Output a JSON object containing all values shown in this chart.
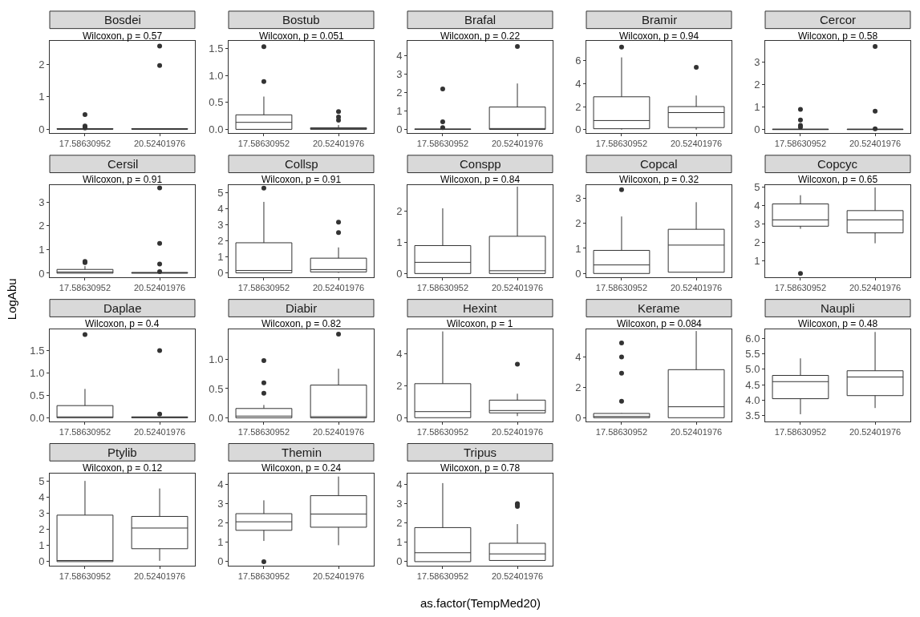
{
  "chart_data": [
    {
      "type": "box",
      "title": "Bosdei",
      "categories": [
        "17.58630952",
        "20.52401976"
      ],
      "annotations": [
        "Wilcoxon, p = 0.57"
      ],
      "ylim": [
        -0.12,
        2.72
      ],
      "yticks": [
        0,
        1,
        2
      ],
      "boxes": [
        {
          "low": 0,
          "q1": 0,
          "median": 0,
          "q3": 0.02,
          "high": 0.02,
          "outliers": [
            0.45,
            0.1,
            0.04
          ]
        },
        {
          "low": 0,
          "q1": 0,
          "median": 0,
          "q3": 0.02,
          "high": 0.02,
          "outliers": [
            1.97,
            2.57
          ]
        }
      ]
    },
    {
      "type": "box",
      "title": "Bostub",
      "categories": [
        "17.58630952",
        "20.52401976"
      ],
      "annotations": [
        "Wilcoxon, p = 0.051"
      ],
      "ylim": [
        -0.07,
        1.64
      ],
      "yticks": [
        {
          "value": 0,
          "label": "0.0"
        },
        {
          "value": 0.5,
          "label": "0.5"
        },
        {
          "value": 1,
          "label": "1.0"
        },
        {
          "value": 1.5,
          "label": "1.5"
        }
      ],
      "boxes": [
        {
          "low": 0,
          "q1": 0,
          "median": 0.13,
          "q3": 0.27,
          "high": 0.61,
          "outliers": [
            0.89,
            1.54
          ]
        },
        {
          "low": 0,
          "q1": 0,
          "median": 0.02,
          "q3": 0.03,
          "high": 0.08,
          "outliers": [
            0.17,
            0.23,
            0.33
          ]
        }
      ]
    },
    {
      "type": "box",
      "title": "Brafal",
      "categories": [
        "17.58630952",
        "20.52401976"
      ],
      "annotations": [
        "Wilcoxon, p = 0.22"
      ],
      "ylim": [
        -0.2,
        4.8
      ],
      "yticks": [
        0,
        1,
        2,
        3,
        4
      ],
      "boxes": [
        {
          "low": 0,
          "q1": 0,
          "median": 0,
          "q3": 0.03,
          "high": 0.03,
          "outliers": [
            2.2,
            0.42,
            0.1
          ]
        },
        {
          "low": 0,
          "q1": 0,
          "median": 0.05,
          "q3": 1.22,
          "high": 2.5,
          "outliers": [
            4.52
          ]
        }
      ]
    },
    {
      "type": "box",
      "title": "Bramir",
      "categories": [
        "17.58630952",
        "20.52401976"
      ],
      "annotations": [
        "Wilcoxon, p = 0.94"
      ],
      "ylim": [
        -0.3,
        7.67
      ],
      "yticks": [
        0,
        2,
        4,
        6
      ],
      "boxes": [
        {
          "low": 0,
          "q1": 0.08,
          "median": 0.79,
          "q3": 2.85,
          "high": 6.27,
          "outliers": [
            7.17
          ]
        },
        {
          "low": 0,
          "q1": 0.18,
          "median": 1.48,
          "q3": 2.0,
          "high": 2.96,
          "outliers": [
            5.4
          ]
        }
      ]
    },
    {
      "type": "box",
      "title": "Cercor",
      "categories": [
        "17.58630952",
        "20.52401976"
      ],
      "annotations": [
        "Wilcoxon, p = 0.58"
      ],
      "ylim": [
        -0.16,
        3.92
      ],
      "yticks": [
        0,
        1,
        2,
        3
      ],
      "boxes": [
        {
          "low": 0,
          "q1": 0,
          "median": 0,
          "q3": 0.02,
          "high": 0.02,
          "outliers": [
            0.89,
            0.42,
            0.18,
            0.1
          ]
        },
        {
          "low": 0,
          "q1": 0,
          "median": 0,
          "q3": 0.02,
          "high": 0.02,
          "outliers": [
            0.81,
            0.03,
            3.69
          ]
        }
      ]
    },
    {
      "type": "box",
      "title": "Cersil",
      "categories": [
        "17.58630952",
        "20.52401976"
      ],
      "annotations": [
        "Wilcoxon, p = 0.91"
      ],
      "ylim": [
        -0.17,
        3.71
      ],
      "yticks": [
        0,
        1,
        2,
        3
      ],
      "boxes": [
        {
          "low": 0,
          "q1": 0,
          "median": 0.05,
          "q3": 0.16,
          "high": 0.3,
          "outliers": [
            0.45,
            0.5
          ]
        },
        {
          "low": 0,
          "q1": 0,
          "median": 0.02,
          "q3": 0.03,
          "high": 0.03,
          "outliers": [
            1.26,
            0.39,
            0.07,
            3.6
          ]
        }
      ]
    },
    {
      "type": "box",
      "title": "Collsp",
      "categories": [
        "17.58630952",
        "20.52401976"
      ],
      "annotations": [
        "Wilcoxon, p = 0.91"
      ],
      "ylim": [
        -0.27,
        5.46
      ],
      "yticks": [
        0,
        1,
        2,
        3,
        4,
        5
      ],
      "boxes": [
        {
          "low": 0,
          "q1": 0,
          "median": 0.15,
          "q3": 1.88,
          "high": 4.43,
          "outliers": [
            5.29
          ]
        },
        {
          "low": 0,
          "q1": 0.06,
          "median": 0.21,
          "q3": 0.92,
          "high": 1.59,
          "outliers": [
            2.51,
            3.16
          ]
        }
      ]
    },
    {
      "type": "box",
      "title": "Conspp",
      "categories": [
        "17.58630952",
        "20.52401976"
      ],
      "annotations": [
        "Wilcoxon, p = 0.84"
      ],
      "ylim": [
        -0.12,
        2.84
      ],
      "yticks": [
        0,
        1,
        2
      ],
      "boxes": [
        {
          "low": 0,
          "q1": 0,
          "median": 0.36,
          "q3": 0.9,
          "high": 2.1
        },
        {
          "low": 0,
          "q1": 0,
          "median": 0.09,
          "q3": 1.2,
          "high": 2.8
        }
      ]
    },
    {
      "type": "box",
      "title": "Copcal",
      "categories": [
        "17.58630952",
        "20.52401976"
      ],
      "annotations": [
        "Wilcoxon, p = 0.32"
      ],
      "ylim": [
        -0.15,
        3.51
      ],
      "yticks": [
        0,
        1,
        2,
        3
      ],
      "boxes": [
        {
          "low": 0,
          "q1": 0,
          "median": 0.34,
          "q3": 0.92,
          "high": 2.27,
          "outliers": [
            3.34
          ]
        },
        {
          "low": 0.05,
          "q1": 0.05,
          "median": 1.13,
          "q3": 1.76,
          "high": 2.84
        }
      ]
    },
    {
      "type": "box",
      "title": "Copcyc",
      "categories": [
        "17.58630952",
        "20.52401976"
      ],
      "annotations": [
        "Wilcoxon, p = 0.65"
      ],
      "ylim": [
        0.13,
        5.08
      ],
      "yticks": [
        1,
        2,
        3,
        4,
        5
      ],
      "boxes": [
        {
          "low": 2.74,
          "q1": 2.88,
          "median": 3.22,
          "q3": 4.08,
          "high": 4.55,
          "outliers": [
            0.33
          ]
        },
        {
          "low": 1.96,
          "q1": 2.52,
          "median": 3.22,
          "q3": 3.72,
          "high": 4.97
        }
      ]
    },
    {
      "type": "box",
      "title": "Daplae",
      "categories": [
        "17.58630952",
        "20.52401976"
      ],
      "annotations": [
        "Wilcoxon, p = 0.4"
      ],
      "ylim": [
        -0.08,
        1.96
      ],
      "yticks": [
        {
          "value": 0,
          "label": "0.0"
        },
        {
          "value": 0.5,
          "label": "0.5"
        },
        {
          "value": 1,
          "label": "1.0"
        },
        {
          "value": 1.5,
          "label": "1.5"
        }
      ],
      "ylabel": "LogAbu",
      "boxes": [
        {
          "low": 0,
          "q1": 0,
          "median": 0.02,
          "q3": 0.27,
          "high": 0.64,
          "outliers": [
            1.85
          ]
        },
        {
          "low": 0,
          "q1": 0,
          "median": 0.01,
          "q3": 0.02,
          "high": 0.02,
          "outliers": [
            1.49,
            0.08
          ]
        }
      ]
    },
    {
      "type": "box",
      "title": "Diabir",
      "categories": [
        "17.58630952",
        "20.52401976"
      ],
      "annotations": [
        "Wilcoxon, p = 0.82"
      ],
      "ylim": [
        -0.06,
        1.51
      ],
      "yticks": [
        {
          "value": 0,
          "label": "0.0"
        },
        {
          "value": 0.5,
          "label": "0.5"
        },
        {
          "value": 1,
          "label": "1.0"
        }
      ],
      "boxes": [
        {
          "low": 0,
          "q1": 0,
          "median": 0.03,
          "q3": 0.16,
          "high": 0.22,
          "outliers": [
            0.42,
            0.6,
            0.98
          ]
        },
        {
          "low": 0,
          "q1": 0,
          "median": 0.02,
          "q3": 0.56,
          "high": 0.84,
          "outliers": [
            1.43
          ]
        }
      ]
    },
    {
      "type": "box",
      "title": "Hexint",
      "categories": [
        "17.58630952",
        "20.52401976"
      ],
      "annotations": [
        "Wilcoxon, p = 1"
      ],
      "ylim": [
        -0.23,
        5.52
      ],
      "yticks": [
        0,
        2,
        4
      ],
      "boxes": [
        {
          "low": 0,
          "q1": 0,
          "median": 0.38,
          "q3": 2.13,
          "high": 5.4
        },
        {
          "low": 0.1,
          "q1": 0.3,
          "median": 0.45,
          "q3": 1.1,
          "high": 1.5,
          "outliers": [
            3.35
          ]
        }
      ]
    },
    {
      "type": "box",
      "title": "Kerame",
      "categories": [
        "17.58630952",
        "20.52401976"
      ],
      "annotations": [
        "Wilcoxon, p = 0.084"
      ],
      "ylim": [
        -0.24,
        5.8
      ],
      "yticks": [
        0,
        2,
        4
      ],
      "boxes": [
        {
          "low": 0,
          "q1": 0,
          "median": 0.08,
          "q3": 0.28,
          "high": 0.3,
          "outliers": [
            1.08,
            2.92,
            4.0,
            4.92
          ]
        },
        {
          "low": 0,
          "q1": 0,
          "median": 0.72,
          "q3": 3.16,
          "high": 5.7
        }
      ]
    },
    {
      "type": "box",
      "title": "Naupli",
      "categories": [
        "17.58630952",
        "20.52401976"
      ],
      "annotations": [
        "Wilcoxon, p = 0.48"
      ],
      "ylim": [
        3.32,
        6.28
      ],
      "yticks": [
        {
          "value": 3.5,
          "label": "3.5"
        },
        {
          "value": 4,
          "label": "4.0"
        },
        {
          "value": 4.5,
          "label": "4.5"
        },
        {
          "value": 5,
          "label": "5.0"
        },
        {
          "value": 5.5,
          "label": "5.5"
        },
        {
          "value": 6,
          "label": "6.0"
        }
      ],
      "boxes": [
        {
          "low": 3.55,
          "q1": 4.05,
          "median": 4.6,
          "q3": 4.8,
          "high": 5.35
        },
        {
          "low": 3.75,
          "q1": 4.15,
          "median": 4.75,
          "q3": 4.95,
          "high": 6.2
        }
      ]
    },
    {
      "type": "box",
      "title": "Ptylib",
      "categories": [
        "17.58630952",
        "20.52401976"
      ],
      "annotations": [
        "Wilcoxon, p = 0.12"
      ],
      "ylim": [
        -0.24,
        5.45
      ],
      "yticks": [
        0,
        1,
        2,
        3,
        4,
        5
      ],
      "boxes": [
        {
          "low": 0,
          "q1": 0,
          "median": 0.07,
          "q3": 2.88,
          "high": 5.0
        },
        {
          "low": 0.05,
          "q1": 0.8,
          "median": 2.08,
          "q3": 2.8,
          "high": 4.53
        }
      ]
    },
    {
      "type": "box",
      "title": "Themin",
      "categories": [
        "17.58630952",
        "20.52401976"
      ],
      "annotations": [
        "Wilcoxon, p = 0.24"
      ],
      "ylim": [
        -0.2,
        4.55
      ],
      "yticks": [
        0,
        1,
        2,
        3,
        4
      ],
      "xlabel": "as.factor(TempMed20)",
      "boxes": [
        {
          "low": 1.07,
          "q1": 1.62,
          "median": 2.06,
          "q3": 2.48,
          "high": 3.17,
          "outliers": [
            0
          ]
        },
        {
          "low": 0.85,
          "q1": 1.78,
          "median": 2.46,
          "q3": 3.41,
          "high": 4.4
        }
      ]
    },
    {
      "type": "box",
      "title": "Tripus",
      "categories": [
        "17.58630952",
        "20.52401976"
      ],
      "annotations": [
        "Wilcoxon, p = 0.78"
      ],
      "ylim": [
        -0.2,
        4.55
      ],
      "yticks": [
        0,
        1,
        2,
        3,
        4
      ],
      "boxes": [
        {
          "low": 0,
          "q1": 0,
          "median": 0.46,
          "q3": 1.76,
          "high": 4.06
        },
        {
          "low": 0.05,
          "q1": 0.06,
          "median": 0.4,
          "q3": 0.95,
          "high": 1.94,
          "outliers": [
            2.85,
            2.95,
            3.0
          ]
        }
      ]
    }
  ]
}
